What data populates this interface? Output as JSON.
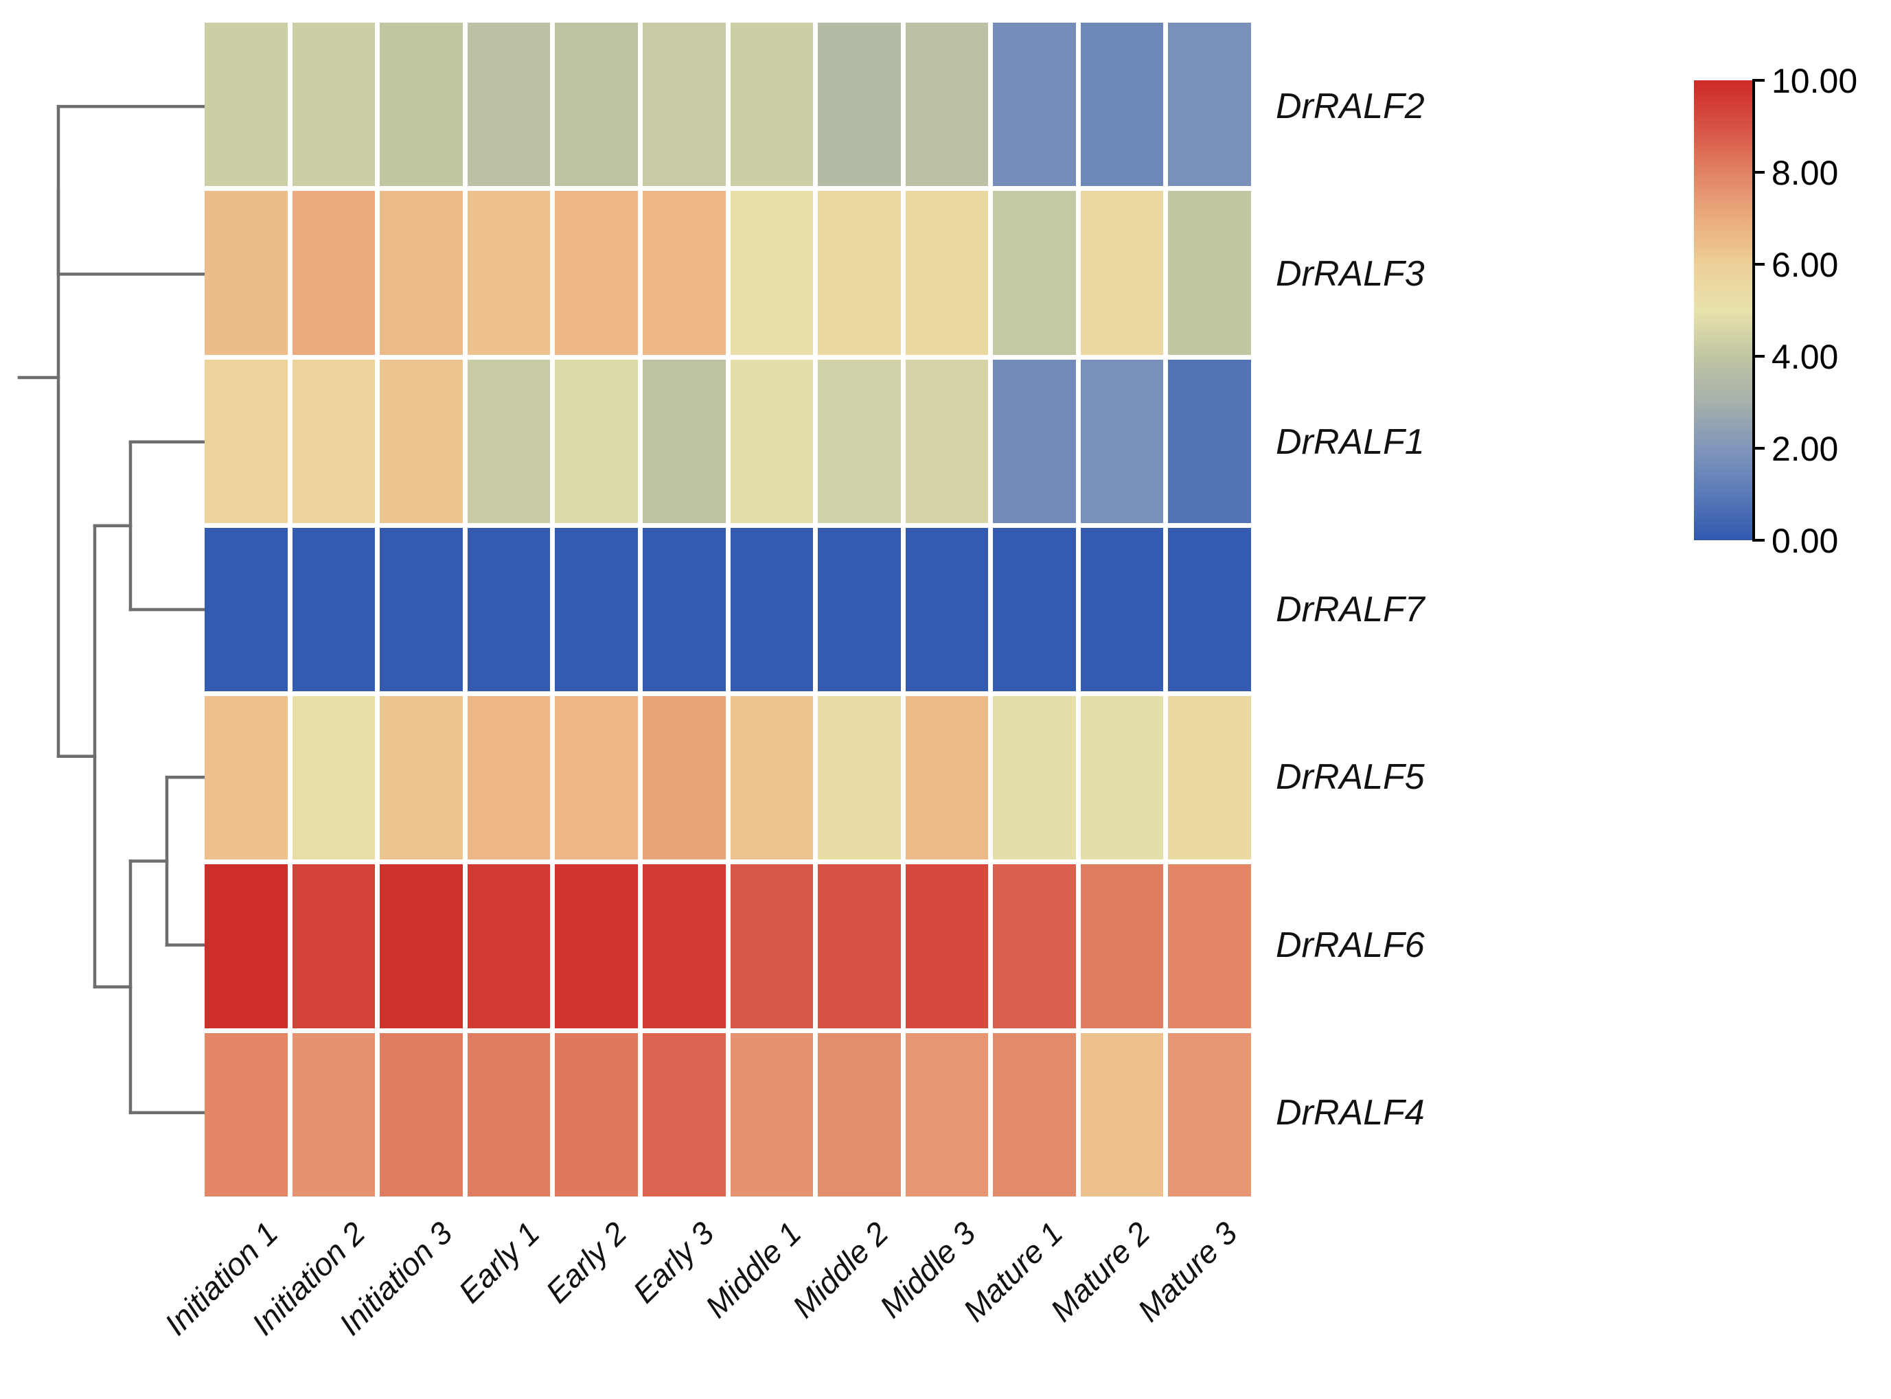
{
  "figure": {
    "background": "#ffffff",
    "dendrogram_line_color": "#6e6e71",
    "text_color": "#111111"
  },
  "chart_data": {
    "type": "heatmap",
    "title": "",
    "rows": [
      "DrRALF2",
      "DrRALF3",
      "DrRALF1",
      "DrRALF7",
      "DrRALF5",
      "DrRALF6",
      "DrRALF4"
    ],
    "columns": [
      "Initiation 1",
      "Initiation 2",
      "Initiation 3",
      "Early 1",
      "Early 2",
      "Early 3",
      "Middle 1",
      "Middle 2",
      "Middle 3",
      "Mature 1",
      "Mature 2",
      "Mature 3"
    ],
    "values": [
      [
        4.3,
        4.3,
        4.0,
        3.8,
        3.9,
        4.2,
        4.3,
        3.5,
        3.8,
        1.7,
        1.5,
        1.8
      ],
      [
        6.5,
        7.0,
        6.6,
        6.4,
        6.7,
        6.7,
        5.1,
        5.6,
        5.6,
        4.1,
        5.6,
        4.0
      ],
      [
        5.8,
        5.8,
        6.3,
        4.2,
        4.7,
        3.9,
        4.9,
        4.4,
        4.5,
        1.6,
        1.8,
        0.8
      ],
      [
        0.1,
        0.1,
        0.1,
        0.1,
        0.1,
        0.1,
        0.1,
        0.1,
        0.1,
        0.1,
        0.1,
        0.1
      ],
      [
        6.4,
        5.2,
        6.3,
        6.7,
        6.7,
        7.2,
        6.3,
        5.3,
        6.6,
        4.9,
        4.9,
        5.5
      ],
      [
        9.9,
        9.4,
        9.8,
        9.6,
        9.7,
        9.6,
        8.9,
        9.0,
        9.2,
        8.7,
        8.1,
        7.9
      ],
      [
        7.9,
        7.6,
        8.1,
        8.1,
        8.2,
        8.6,
        7.6,
        7.7,
        7.5,
        7.8,
        6.4,
        7.5
      ]
    ],
    "row_dendrogram": true,
    "legend_position": "right",
    "scale": {
      "min": 0,
      "max": 10,
      "tick_values": [
        10,
        8,
        6,
        4,
        2,
        0
      ],
      "tick_labels": [
        "10.00",
        "8.00",
        "6.00",
        "4.00",
        "2.00",
        "0.00"
      ]
    },
    "colormap_stops": [
      {
        "v": 0,
        "c": "#3058ae"
      },
      {
        "v": 1,
        "c": "#5a7ab8"
      },
      {
        "v": 2,
        "c": "#8095ba"
      },
      {
        "v": 3,
        "c": "#a6b1ab"
      },
      {
        "v": 4,
        "c": "#c0c5a2"
      },
      {
        "v": 5,
        "c": "#e8e2ab"
      },
      {
        "v": 6,
        "c": "#edcf98"
      },
      {
        "v": 7,
        "c": "#ebab7e"
      },
      {
        "v": 8,
        "c": "#e18263"
      },
      {
        "v": 9,
        "c": "#d75243"
      },
      {
        "v": 10,
        "c": "#cd2a25"
      }
    ]
  },
  "layout_note": ""
}
